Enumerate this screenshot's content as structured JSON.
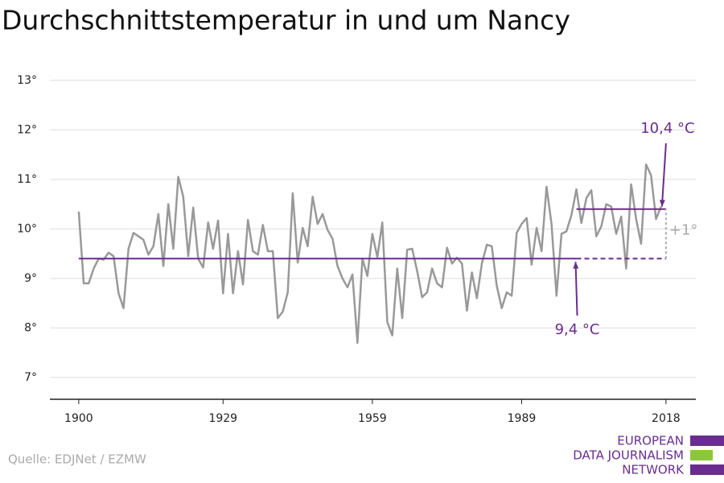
{
  "chart_data": {
    "type": "line",
    "title": "Durchschnittstemperatur in und um Nancy",
    "source": "Quelle: EDJNet / EZMW",
    "logo": [
      "EUROPEAN",
      "DATA JOURNALISM",
      "NETWORK"
    ],
    "x": [
      1900,
      1901,
      1902,
      1903,
      1904,
      1905,
      1906,
      1907,
      1908,
      1909,
      1910,
      1911,
      1912,
      1913,
      1914,
      1915,
      1916,
      1917,
      1918,
      1919,
      1920,
      1921,
      1922,
      1923,
      1924,
      1925,
      1926,
      1927,
      1928,
      1929,
      1930,
      1931,
      1932,
      1933,
      1934,
      1935,
      1936,
      1937,
      1938,
      1939,
      1940,
      1941,
      1942,
      1943,
      1944,
      1945,
      1946,
      1947,
      1948,
      1949,
      1950,
      1951,
      1952,
      1953,
      1954,
      1955,
      1956,
      1957,
      1958,
      1959,
      1960,
      1961,
      1962,
      1963,
      1964,
      1965,
      1966,
      1967,
      1968,
      1969,
      1970,
      1971,
      1972,
      1973,
      1974,
      1975,
      1976,
      1977,
      1978,
      1979,
      1980,
      1981,
      1982,
      1983,
      1984,
      1985,
      1986,
      1987,
      1988,
      1989,
      1990,
      1991,
      1992,
      1993,
      1994,
      1995,
      1996,
      1997,
      1998,
      1999,
      2000,
      2001,
      2002,
      2003,
      2004,
      2005,
      2006,
      2007,
      2008,
      2009,
      2010,
      2011,
      2012,
      2013,
      2014,
      2015,
      2016,
      2017
    ],
    "series": [
      {
        "color": "#999999",
        "values": [
          10.35,
          8.9,
          8.9,
          9.2,
          9.4,
          9.38,
          9.52,
          9.45,
          8.7,
          8.4,
          9.6,
          9.92,
          9.85,
          9.78,
          9.48,
          9.65,
          10.3,
          9.25,
          10.5,
          9.6,
          11.05,
          10.65,
          9.45,
          10.43,
          9.4,
          9.22,
          10.13,
          9.6,
          10.17,
          8.7,
          9.9,
          8.7,
          9.55,
          8.88,
          10.18,
          9.55,
          9.48,
          10.08,
          9.55,
          9.55,
          8.2,
          8.33,
          8.72,
          10.72,
          9.32,
          10.02,
          9.65,
          10.65,
          10.1,
          10.3,
          9.98,
          9.8,
          9.25,
          9.0,
          8.82,
          9.08,
          7.7,
          9.4,
          9.05,
          9.9,
          9.43,
          10.13,
          8.12,
          7.85,
          9.2,
          8.2,
          9.58,
          9.6,
          9.15,
          8.62,
          8.72,
          9.2,
          8.9,
          8.82,
          9.62,
          9.3,
          9.42,
          9.3,
          8.35,
          9.12,
          8.6,
          9.3,
          9.68,
          9.65,
          8.85,
          8.4,
          8.72,
          8.65,
          9.92,
          10.1,
          10.22,
          9.28,
          10.02,
          9.55,
          10.85,
          10.1,
          8.65,
          9.9,
          9.95,
          10.28,
          10.8,
          10.12,
          10.62,
          10.78,
          9.85,
          10.05,
          10.5,
          10.45,
          9.9,
          10.25,
          9.2,
          10.9,
          10.2,
          9.7,
          11.3,
          11.08,
          10.2,
          10.45
        ]
      }
    ],
    "reference_lines": [
      {
        "value": 9.4,
        "label": "9,4 °C",
        "from": 1900,
        "to": 2018,
        "color": "#6a2d8f"
      },
      {
        "value": 10.4,
        "label": "10,4 °C",
        "from": 2000,
        "to": 2018,
        "color": "#6a2d8f"
      }
    ],
    "difference_label": "+1°",
    "xlim": [
      1894.2,
      2024
    ],
    "xticks": [
      1900,
      1929,
      1959,
      1989,
      2018
    ],
    "ylim": [
      6.56,
      13.24
    ],
    "yticks": [
      {
        "value": 7,
        "label": "7°"
      },
      {
        "value": 8,
        "label": "8°"
      },
      {
        "value": 9,
        "label": "9°"
      },
      {
        "value": 10,
        "label": "10°"
      },
      {
        "value": 11,
        "label": "11°"
      },
      {
        "value": 12,
        "label": "12°"
      },
      {
        "value": 13,
        "label": "13°"
      }
    ],
    "grid": true
  }
}
